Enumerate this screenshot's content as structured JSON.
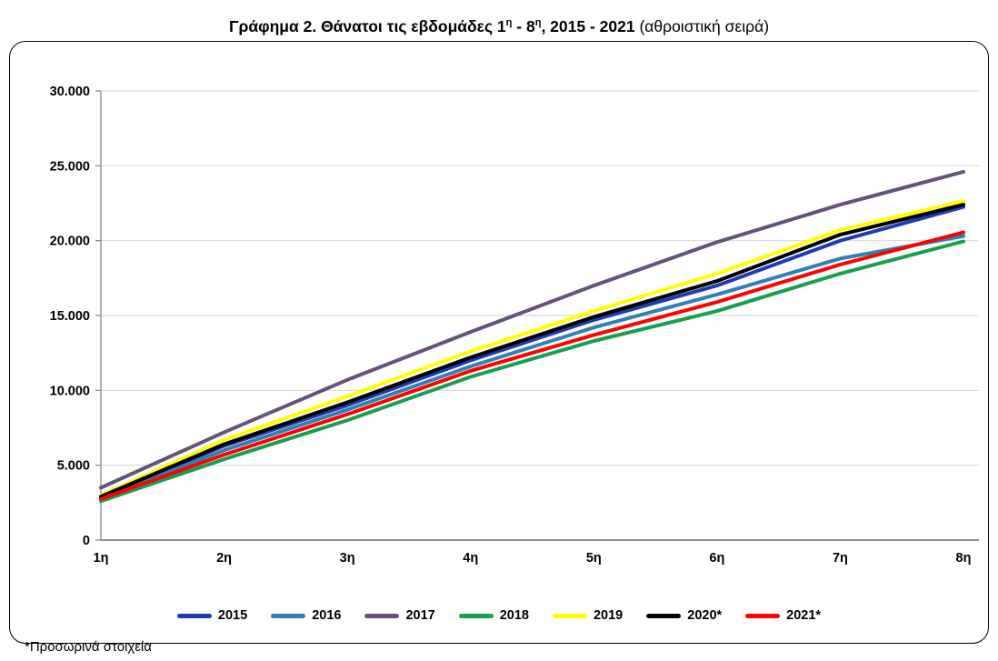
{
  "title": {
    "bold_1": "Γράφημα 2. Θάνατοι τις εβδομάδες 1",
    "sup_1": "η",
    "bold_2": " - 8",
    "sup_2": "η",
    "bold_3": ", 2015 - 2021",
    "normal": " (αθροιστική σειρά)"
  },
  "footnote": "*Προσωρινά στοιχεία",
  "colors": {
    "gridline": "#D9D9D9",
    "axis": "#808080",
    "frame_border": "#000000",
    "text": "#000000"
  },
  "chart_data": {
    "type": "line",
    "title": "Γράφημα 2. Θάνατοι τις εβδομάδες 1η - 8η, 2015 - 2021 (αθροιστική σειρά)",
    "xlabel": "",
    "ylabel": "",
    "ylim": [
      0,
      30000
    ],
    "grid": "horizontal",
    "legend_position": "bottom",
    "categories": [
      "1η",
      "2η",
      "3η",
      "4η",
      "5η",
      "6η",
      "7η",
      "8η"
    ],
    "y_tick_labels": [
      "30.000",
      "25.000",
      "20.000",
      "15.000",
      "10.000",
      "5.000",
      "0"
    ],
    "y_tick_values": [
      30000,
      25000,
      20000,
      15000,
      10000,
      5000,
      0
    ],
    "series": [
      {
        "name": "2015",
        "color": "#1F3BB3",
        "values": [
          2900,
          6300,
          9000,
          12000,
          14700,
          17000,
          20000,
          22250
        ]
      },
      {
        "name": "2016",
        "color": "#2E81B5",
        "values": [
          2800,
          6000,
          8700,
          11600,
          14200,
          16400,
          18800,
          20300
        ]
      },
      {
        "name": "2017",
        "color": "#64527B",
        "values": [
          3500,
          7200,
          10700,
          13900,
          17000,
          19900,
          22400,
          24600
        ]
      },
      {
        "name": "2018",
        "color": "#14A04E",
        "values": [
          2600,
          5400,
          8000,
          10900,
          13300,
          15300,
          17800,
          19950
        ]
      },
      {
        "name": "2019",
        "color": "#FFFF00",
        "values": [
          3000,
          6700,
          9600,
          12600,
          15300,
          17800,
          20700,
          22650
        ]
      },
      {
        "name": "2020*",
        "color": "#000000",
        "values": [
          2900,
          6400,
          9200,
          12200,
          14900,
          17300,
          20400,
          22400
        ]
      },
      {
        "name": "2021*",
        "color": "#FF0000",
        "values": [
          2750,
          5700,
          8400,
          11300,
          13700,
          15900,
          18400,
          20550
        ]
      }
    ]
  }
}
